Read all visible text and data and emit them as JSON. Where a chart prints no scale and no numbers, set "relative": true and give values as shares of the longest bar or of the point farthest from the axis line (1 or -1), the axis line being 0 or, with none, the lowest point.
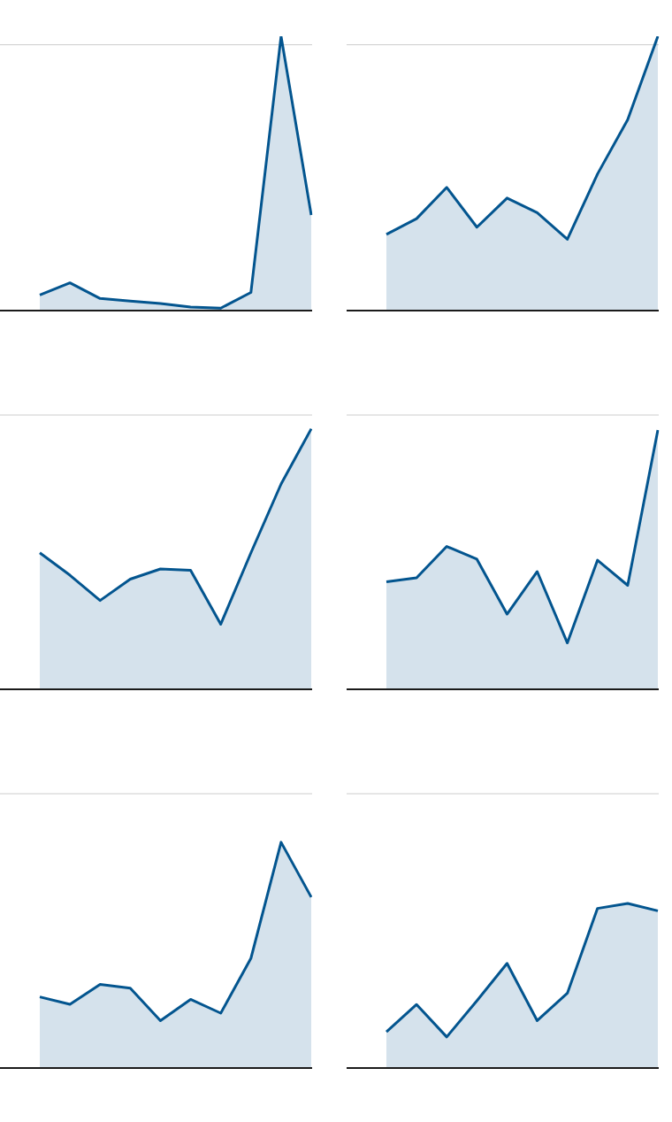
{
  "chart_data": [
    {
      "type": "area",
      "relative": true,
      "categories": [
        null,
        null,
        null,
        null,
        null,
        null,
        null,
        null,
        null,
        null
      ],
      "series": [
        {
          "color": "#03558f",
          "values": [
            0.057,
            0.101,
            0.044,
            0.035,
            0.026,
            0.013,
            0.009,
            0.066,
            1,
            0.348
          ]
        }
      ],
      "ref_lines": [
        {
          "axis": "y",
          "value": 0.969,
          "color": "#cccccc"
        }
      ],
      "legend": false
    },
    {
      "type": "area",
      "relative": true,
      "categories": [
        null,
        null,
        null,
        null,
        null,
        null,
        null,
        null,
        null,
        null
      ],
      "series": [
        {
          "color": "#03558f",
          "values": [
            0.278,
            0.335,
            0.449,
            0.304,
            0.41,
            0.357,
            0.26,
            0.498,
            0.696,
            1
          ]
        }
      ],
      "ref_lines": [
        {
          "axis": "y",
          "value": 0.969,
          "color": "#cccccc"
        }
      ],
      "legend": false
    },
    {
      "type": "area",
      "relative": true,
      "categories": [
        null,
        null,
        null,
        null,
        null,
        null,
        null,
        null,
        null,
        null
      ],
      "series": [
        {
          "color": "#03558f",
          "values": [
            0.524,
            0.438,
            0.341,
            0.423,
            0.462,
            0.457,
            0.25,
            0.524,
            0.788,
            1
          ]
        }
      ],
      "ref_lines": [
        {
          "axis": "y",
          "value": 1.053,
          "color": "#cccccc"
        }
      ],
      "legend": false
    },
    {
      "type": "area",
      "relative": true,
      "categories": [
        null,
        null,
        null,
        null,
        null,
        null,
        null,
        null,
        null,
        null
      ],
      "series": [
        {
          "color": "#03558f",
          "values": [
            0.415,
            0.43,
            0.551,
            0.502,
            0.29,
            0.454,
            0.179,
            0.498,
            0.401,
            1
          ]
        }
      ],
      "ref_lines": [
        {
          "axis": "y",
          "value": 1.058,
          "color": "#cccccc"
        }
      ],
      "legend": false
    },
    {
      "type": "area",
      "relative": true,
      "categories": [
        null,
        null,
        null,
        null,
        null,
        null,
        null,
        null,
        null,
        null
      ],
      "series": [
        {
          "color": "#03558f",
          "values": [
            0.315,
            0.282,
            0.37,
            0.354,
            0.21,
            0.304,
            0.243,
            0.486,
            1,
            0.757
          ]
        }
      ],
      "ref_lines": [
        {
          "axis": "y",
          "value": 1.215,
          "color": "#cccccc"
        }
      ],
      "legend": false
    },
    {
      "type": "area",
      "relative": true,
      "categories": [
        null,
        null,
        null,
        null,
        null,
        null,
        null,
        null,
        null,
        null
      ],
      "series": [
        {
          "color": "#03558f",
          "values": [
            0.22,
            0.386,
            0.189,
            0.409,
            0.636,
            0.288,
            0.455,
            0.97,
            1,
            0.955
          ]
        }
      ],
      "ref_lines": [
        {
          "axis": "y",
          "value": 1.667,
          "color": "#cccccc"
        }
      ],
      "legend": false
    }
  ]
}
